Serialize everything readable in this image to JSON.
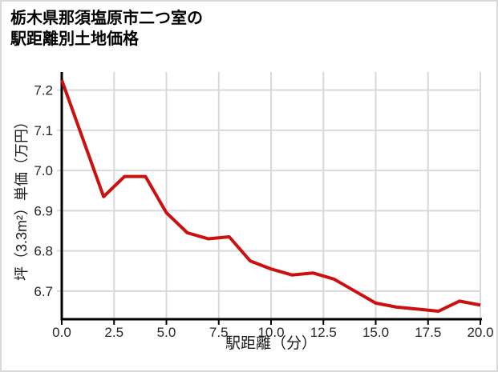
{
  "page": {
    "background": "#ffffff",
    "border_color": "#d9d9d9"
  },
  "title": {
    "line1": "栃木県那須塩原市二つ室の",
    "line2": "駅距離別土地価格"
  },
  "chart_data": {
    "type": "line",
    "title": "栃木県那須塩原市二つ室の駅距離別土地価格",
    "xlabel": "駅距離（分）",
    "ylabel": "坪（3.3m²）単価（万円）",
    "x": [
      0,
      1,
      2,
      3,
      4,
      5,
      6,
      7,
      8,
      9,
      10,
      11,
      12,
      13,
      14,
      15,
      16,
      17,
      18,
      19,
      20
    ],
    "values": [
      7.225,
      7.08,
      6.935,
      6.985,
      6.985,
      6.895,
      6.845,
      6.83,
      6.835,
      6.775,
      6.755,
      6.74,
      6.745,
      6.73,
      6.7,
      6.67,
      6.66,
      6.655,
      6.65,
      6.675,
      6.665
    ],
    "xlim": [
      0,
      20
    ],
    "ylim": [
      6.63,
      7.245
    ],
    "xticks": [
      0,
      2.5,
      5,
      7.5,
      10,
      12.5,
      15,
      17.5,
      20
    ],
    "xtick_labels": [
      "0.0",
      "2.5",
      "5.0",
      "7.5",
      "10.0",
      "12.5",
      "15.0",
      "17.5",
      "20.0"
    ],
    "yticks": [
      6.7,
      6.8,
      6.9,
      7.0,
      7.1,
      7.2
    ],
    "ytick_labels": [
      "6.7",
      "6.8",
      "6.9",
      "7.0",
      "7.1",
      "7.2"
    ],
    "grid": true,
    "legend": false,
    "line_color": "#cc0f0f",
    "line_width": 4,
    "grid_color": "#d9d9d9",
    "axis_color": "#000000",
    "tick_label_color": "#262626"
  }
}
